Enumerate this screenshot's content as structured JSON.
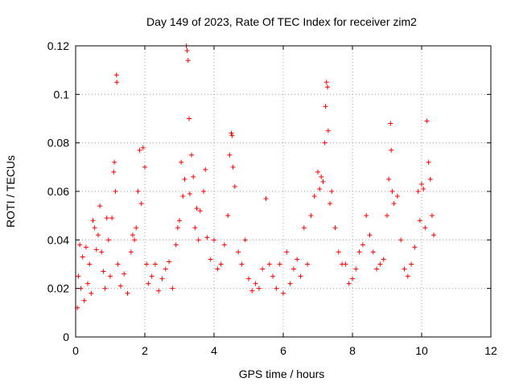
{
  "chart_data": {
    "type": "scatter",
    "title": "Day 149 of 2023, Rate Of TEC Index for receiver zim2",
    "xlabel": "GPS time / hours",
    "ylabel": "ROTI / TECUs",
    "xlim": [
      0,
      12
    ],
    "ylim": [
      0,
      0.12
    ],
    "x_ticks": [
      0,
      2,
      4,
      6,
      8,
      10,
      12
    ],
    "x_tick_labels": [
      "0",
      "2",
      "4",
      "6",
      "8",
      "10",
      "12"
    ],
    "y_ticks": [
      0,
      0.02,
      0.04,
      0.06,
      0.08,
      0.1,
      0.12
    ],
    "y_tick_labels": [
      "0",
      "0.02",
      "0.04",
      "0.06",
      "0.08",
      "0.1",
      "0.12"
    ],
    "grid": true,
    "marker": "+",
    "color": "#ff0000",
    "series": [
      {
        "name": "ROTI",
        "points": [
          [
            0.05,
            0.012
          ],
          [
            0.08,
            0.025
          ],
          [
            0.12,
            0.038
          ],
          [
            0.15,
            0.02
          ],
          [
            0.2,
            0.033
          ],
          [
            0.25,
            0.015
          ],
          [
            0.3,
            0.037
          ],
          [
            0.35,
            0.022
          ],
          [
            0.4,
            0.03
          ],
          [
            0.45,
            0.018
          ],
          [
            0.5,
            0.048
          ],
          [
            0.55,
            0.045
          ],
          [
            0.6,
            0.036
          ],
          [
            0.65,
            0.042
          ],
          [
            0.7,
            0.054
          ],
          [
            0.75,
            0.035
          ],
          [
            0.8,
            0.027
          ],
          [
            0.85,
            0.02
          ],
          [
            0.9,
            0.049
          ],
          [
            0.95,
            0.04
          ],
          [
            1.0,
            0.025
          ],
          [
            1.05,
            0.049
          ],
          [
            1.1,
            0.068
          ],
          [
            1.12,
            0.072
          ],
          [
            1.15,
            0.06
          ],
          [
            1.18,
            0.108
          ],
          [
            1.19,
            0.105
          ],
          [
            1.22,
            0.03
          ],
          [
            1.3,
            0.021
          ],
          [
            1.4,
            0.026
          ],
          [
            1.5,
            0.018
          ],
          [
            1.6,
            0.035
          ],
          [
            1.65,
            0.042
          ],
          [
            1.7,
            0.04
          ],
          [
            1.75,
            0.045
          ],
          [
            1.8,
            0.06
          ],
          [
            1.85,
            0.077
          ],
          [
            1.9,
            0.055
          ],
          [
            1.95,
            0.078
          ],
          [
            2.0,
            0.07
          ],
          [
            2.05,
            0.03
          ],
          [
            2.1,
            0.022
          ],
          [
            2.2,
            0.025
          ],
          [
            2.3,
            0.03
          ],
          [
            2.4,
            0.019
          ],
          [
            2.5,
            0.024
          ],
          [
            2.6,
            0.028
          ],
          [
            2.7,
            0.031
          ],
          [
            2.8,
            0.02
          ],
          [
            2.9,
            0.038
          ],
          [
            2.95,
            0.045
          ],
          [
            3.0,
            0.048
          ],
          [
            3.05,
            0.072
          ],
          [
            3.1,
            0.058
          ],
          [
            3.15,
            0.065
          ],
          [
            3.2,
            0.12
          ],
          [
            3.22,
            0.118
          ],
          [
            3.25,
            0.114
          ],
          [
            3.28,
            0.09
          ],
          [
            3.3,
            0.059
          ],
          [
            3.35,
            0.075
          ],
          [
            3.4,
            0.066
          ],
          [
            3.45,
            0.045
          ],
          [
            3.5,
            0.053
          ],
          [
            3.55,
            0.04
          ],
          [
            3.6,
            0.052
          ],
          [
            3.7,
            0.06
          ],
          [
            3.75,
            0.069
          ],
          [
            3.8,
            0.041
          ],
          [
            3.9,
            0.032
          ],
          [
            4.0,
            0.04
          ],
          [
            4.1,
            0.028
          ],
          [
            4.2,
            0.03
          ],
          [
            4.3,
            0.038
          ],
          [
            4.4,
            0.05
          ],
          [
            4.45,
            0.075
          ],
          [
            4.5,
            0.084
          ],
          [
            4.52,
            0.083
          ],
          [
            4.55,
            0.07
          ],
          [
            4.6,
            0.062
          ],
          [
            4.7,
            0.035
          ],
          [
            4.8,
            0.03
          ],
          [
            4.9,
            0.04
          ],
          [
            5.0,
            0.024
          ],
          [
            5.1,
            0.019
          ],
          [
            5.2,
            0.022
          ],
          [
            5.3,
            0.02
          ],
          [
            5.4,
            0.028
          ],
          [
            5.5,
            0.057
          ],
          [
            5.6,
            0.03
          ],
          [
            5.7,
            0.025
          ],
          [
            5.8,
            0.02
          ],
          [
            5.9,
            0.03
          ],
          [
            6.0,
            0.018
          ],
          [
            6.1,
            0.035
          ],
          [
            6.2,
            0.022
          ],
          [
            6.3,
            0.028
          ],
          [
            6.4,
            0.032
          ],
          [
            6.5,
            0.025
          ],
          [
            6.6,
            0.045
          ],
          [
            6.7,
            0.03
          ],
          [
            6.8,
            0.05
          ],
          [
            6.9,
            0.058
          ],
          [
            7.0,
            0.068
          ],
          [
            7.05,
            0.061
          ],
          [
            7.1,
            0.066
          ],
          [
            7.15,
            0.064
          ],
          [
            7.2,
            0.08
          ],
          [
            7.22,
            0.095
          ],
          [
            7.25,
            0.105
          ],
          [
            7.28,
            0.103
          ],
          [
            7.3,
            0.085
          ],
          [
            7.35,
            0.055
          ],
          [
            7.4,
            0.06
          ],
          [
            7.5,
            0.045
          ],
          [
            7.6,
            0.035
          ],
          [
            7.7,
            0.03
          ],
          [
            7.8,
            0.03
          ],
          [
            7.9,
            0.022
          ],
          [
            8.0,
            0.024
          ],
          [
            8.1,
            0.028
          ],
          [
            8.2,
            0.035
          ],
          [
            8.3,
            0.038
          ],
          [
            8.4,
            0.05
          ],
          [
            8.5,
            0.042
          ],
          [
            8.6,
            0.035
          ],
          [
            8.7,
            0.028
          ],
          [
            8.8,
            0.03
          ],
          [
            8.9,
            0.032
          ],
          [
            9.0,
            0.05
          ],
          [
            9.05,
            0.065
          ],
          [
            9.1,
            0.088
          ],
          [
            9.12,
            0.077
          ],
          [
            9.15,
            0.06
          ],
          [
            9.2,
            0.055
          ],
          [
            9.3,
            0.058
          ],
          [
            9.4,
            0.04
          ],
          [
            9.5,
            0.028
          ],
          [
            9.6,
            0.025
          ],
          [
            9.7,
            0.03
          ],
          [
            9.8,
            0.037
          ],
          [
            9.9,
            0.06
          ],
          [
            9.95,
            0.048
          ],
          [
            10.0,
            0.063
          ],
          [
            10.05,
            0.061
          ],
          [
            10.1,
            0.045
          ],
          [
            10.15,
            0.089
          ],
          [
            10.2,
            0.072
          ],
          [
            10.25,
            0.065
          ],
          [
            10.3,
            0.05
          ],
          [
            10.35,
            0.042
          ]
        ]
      }
    ]
  }
}
